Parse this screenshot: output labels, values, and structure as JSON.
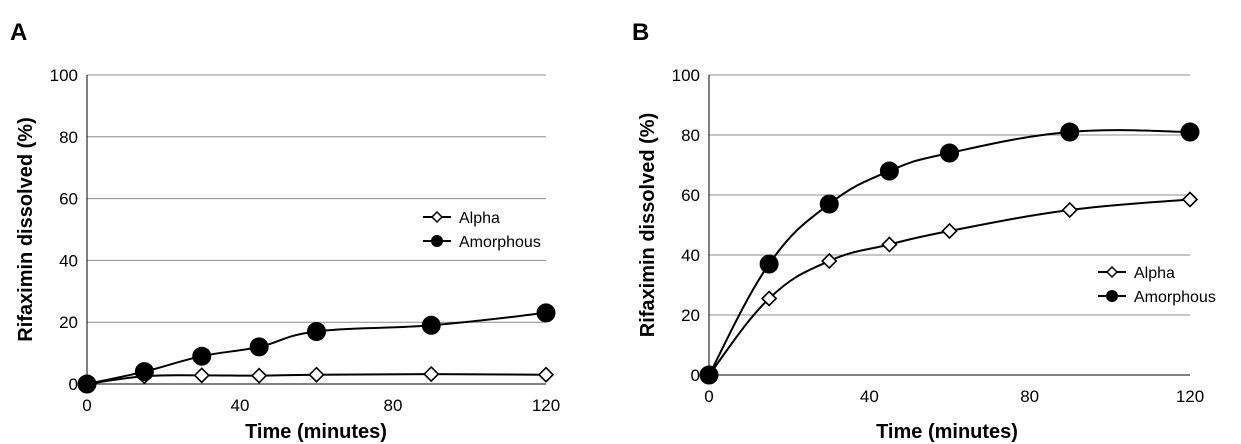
{
  "chart_data": [
    {
      "panel": "A",
      "type": "line",
      "xlabel": "Time (minutes)",
      "ylabel": "Rifaximin dissolved (%)",
      "xlim": [
        0,
        120
      ],
      "ylim": [
        0,
        100
      ],
      "x_ticks": [
        0,
        40,
        80,
        120
      ],
      "y_ticks": [
        0,
        20,
        40,
        60,
        80,
        100
      ],
      "grid": "horizontal",
      "legend_position": "center-right",
      "series": [
        {
          "name": "Alpha",
          "marker": "open-diamond",
          "x": [
            0,
            15,
            30,
            45,
            60,
            90,
            120
          ],
          "y": [
            0,
            2.5,
            2.8,
            2.7,
            3,
            3.2,
            3
          ]
        },
        {
          "name": "Amorphous",
          "marker": "filled-circle",
          "x": [
            0,
            15,
            30,
            45,
            60,
            90,
            120
          ],
          "y": [
            0,
            4,
            9,
            12,
            17,
            19,
            23
          ]
        }
      ]
    },
    {
      "panel": "B",
      "type": "line",
      "xlabel": "Time (minutes)",
      "ylabel": "Rifaximin dissolved (%)",
      "xlim": [
        0,
        120
      ],
      "ylim": [
        0,
        100
      ],
      "x_ticks": [
        0,
        40,
        80,
        120
      ],
      "y_ticks": [
        0,
        20,
        40,
        60,
        80,
        100
      ],
      "grid": "horizontal",
      "legend_position": "lower-right",
      "series": [
        {
          "name": "Alpha",
          "marker": "open-diamond",
          "x": [
            0,
            15,
            30,
            45,
            60,
            90,
            120
          ],
          "y": [
            0,
            25.5,
            38,
            43.5,
            48,
            55,
            58.5
          ]
        },
        {
          "name": "Amorphous",
          "marker": "filled-circle",
          "x": [
            0,
            15,
            30,
            45,
            60,
            90,
            120
          ],
          "y": [
            0,
            37,
            57,
            68,
            74,
            81,
            81
          ]
        }
      ]
    }
  ]
}
